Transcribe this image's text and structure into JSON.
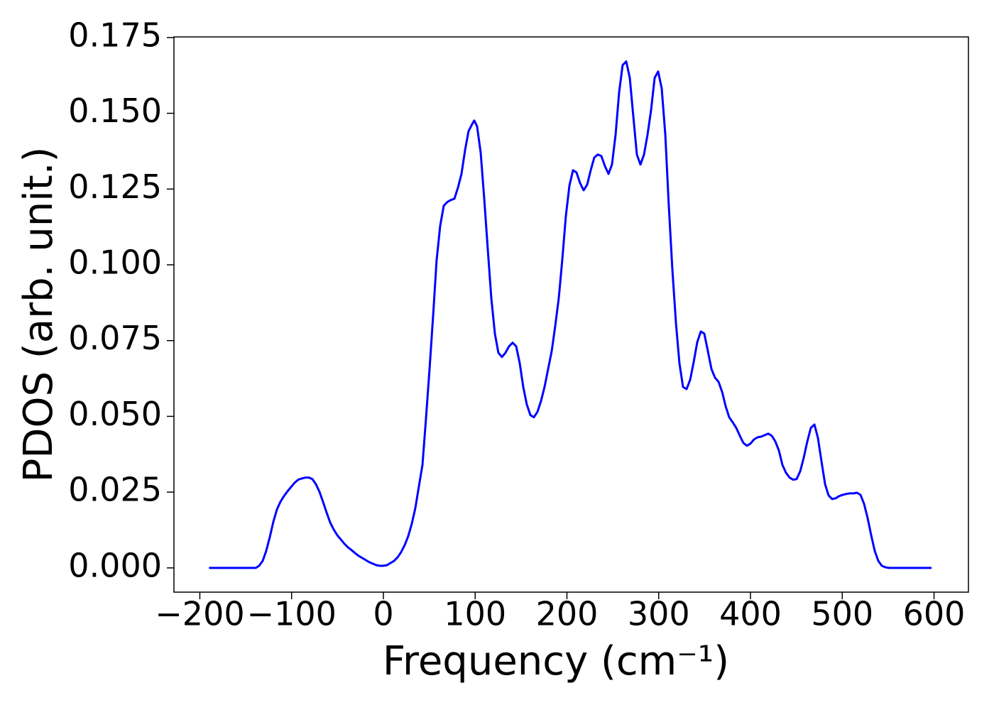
{
  "chart_data": {
    "type": "line",
    "xlabel": "Frequency (cm⁻¹)",
    "ylabel": "PDOS (arb. unit.)",
    "x": [
      -190,
      -139,
      -135.4,
      -131.5,
      -127.7,
      -123.8,
      -119.9,
      -116.1,
      -112.2,
      -108.3,
      -104.4,
      -100.6,
      -96.7,
      -92.8,
      -89,
      -85.1,
      -81.2,
      -77.4,
      -73.5,
      -69.6,
      -65.8,
      -61.9,
      -58,
      -54.2,
      -50.3,
      -46.4,
      -42.6,
      -38.7,
      -34.8,
      -30.9,
      -27.1,
      -23.2,
      -19.3,
      -15.5,
      -11.6,
      -7.7,
      -3.9,
      0,
      3.9,
      7.7,
      11.6,
      15.5,
      19.3,
      23.2,
      27.1,
      30.9,
      34.8,
      38.7,
      42.6,
      46.4,
      50.3,
      54.2,
      58,
      61.9,
      65.8,
      69.6,
      73.5,
      77.4,
      81.2,
      85.1,
      89,
      92.8,
      96.7,
      99,
      102.1,
      106,
      109.9,
      113.7,
      117.6,
      121.5,
      125.3,
      129.2,
      133.1,
      136.9,
      140.8,
      144.7,
      148.6,
      152.4,
      156.3,
      160.2,
      164,
      167.9,
      171.8,
      175.6,
      179.5,
      183.4,
      187.2,
      191.1,
      195,
      198.8,
      202.7,
      206.6,
      210.4,
      214.3,
      218.2,
      222.1,
      225.9,
      229.8,
      233.7,
      237.5,
      241.4,
      245.3,
      249.1,
      253,
      256.9,
      260.7,
      264.6,
      268.5,
      272.4,
      276.2,
      280.1,
      284,
      287.8,
      291.7,
      295.6,
      299.4,
      303.3,
      307.2,
      311,
      314.9,
      318.8,
      322.6,
      326.5,
      330.4,
      334.3,
      338.1,
      342,
      345.9,
      349.7,
      353.6,
      357.5,
      361.3,
      365.2,
      369.1,
      372.9,
      376.8,
      380.7,
      384.5,
      388.4,
      392.3,
      396.2,
      400,
      403.9,
      407.8,
      411.6,
      415.5,
      419.4,
      423.2,
      427.1,
      431,
      434.8,
      438.7,
      442.6,
      446.4,
      450.3,
      454.2,
      458,
      461.9,
      465.8,
      469.7,
      473.5,
      477.4,
      481.3,
      485.1,
      489,
      492.9,
      496.7,
      500.6,
      504.5,
      508.3,
      512.2,
      516.1,
      519.9,
      523.8,
      527.7,
      531.5,
      535.4,
      539.3,
      543.1,
      547,
      550.9,
      597.3
    ],
    "series": [
      {
        "color": "#0000ff",
        "values": [
          0,
          0,
          0.0007,
          0.0023,
          0.0056,
          0.0101,
          0.0152,
          0.0192,
          0.0218,
          0.0237,
          0.0253,
          0.0267,
          0.0281,
          0.0291,
          0.0295,
          0.0298,
          0.0298,
          0.0293,
          0.0276,
          0.0251,
          0.0218,
          0.0183,
          0.015,
          0.0127,
          0.0108,
          0.0094,
          0.008,
          0.0068,
          0.0059,
          0.0049,
          0.004,
          0.0033,
          0.0026,
          0.0019,
          0.0014,
          0.0009,
          0.0007,
          0.0007,
          0.0009,
          0.0016,
          0.0023,
          0.0035,
          0.0052,
          0.0075,
          0.0105,
          0.0145,
          0.0197,
          0.0269,
          0.034,
          0.0492,
          0.0656,
          0.0832,
          0.1015,
          0.1129,
          0.1195,
          0.1207,
          0.1214,
          0.1218,
          0.1254,
          0.13,
          0.1378,
          0.1441,
          0.1464,
          0.1476,
          0.1457,
          0.1371,
          0.1218,
          0.1054,
          0.089,
          0.0773,
          0.071,
          0.0696,
          0.071,
          0.0731,
          0.0743,
          0.0731,
          0.0675,
          0.0597,
          0.0539,
          0.0504,
          0.0497,
          0.0515,
          0.0551,
          0.0597,
          0.0656,
          0.0715,
          0.0797,
          0.089,
          0.1019,
          0.116,
          0.1261,
          0.1312,
          0.1305,
          0.127,
          0.1246,
          0.1265,
          0.1312,
          0.1354,
          0.1364,
          0.1359,
          0.1326,
          0.13,
          0.1331,
          0.1429,
          0.157,
          0.1659,
          0.1671,
          0.1617,
          0.1488,
          0.1364,
          0.1331,
          0.1364,
          0.1429,
          0.1511,
          0.1617,
          0.1638,
          0.1582,
          0.1429,
          0.1195,
          0.0984,
          0.0808,
          0.0675,
          0.0597,
          0.059,
          0.0621,
          0.0679,
          0.0745,
          0.078,
          0.0773,
          0.0715,
          0.0656,
          0.0628,
          0.0614,
          0.0581,
          0.0534,
          0.0497,
          0.048,
          0.0462,
          0.0436,
          0.0412,
          0.0403,
          0.041,
          0.0424,
          0.0431,
          0.0433,
          0.0438,
          0.0443,
          0.0436,
          0.0417,
          0.0387,
          0.034,
          0.0314,
          0.0298,
          0.0291,
          0.0293,
          0.0319,
          0.0363,
          0.0417,
          0.0462,
          0.0473,
          0.0429,
          0.0351,
          0.0276,
          0.0239,
          0.0227,
          0.023,
          0.0237,
          0.0241,
          0.0244,
          0.0246,
          0.0246,
          0.0248,
          0.0241,
          0.0211,
          0.0164,
          0.0108,
          0.0056,
          0.0023,
          0.0007,
          0.0002,
          0,
          0
        ]
      }
    ],
    "xlim": [
      -228.2,
      637.5
    ],
    "ylim": [
      -0.008,
      0.1752
    ],
    "xticks": [
      {
        "value": -200,
        "label": "−200"
      },
      {
        "value": -100,
        "label": "−100"
      },
      0,
      100,
      200,
      300,
      400,
      500,
      600
    ],
    "yticks": [
      {
        "value": 0,
        "label": "0.000"
      },
      {
        "value": 0.025,
        "label": "0.025"
      },
      {
        "value": 0.05,
        "label": "0.050"
      },
      {
        "value": 0.075,
        "label": "0.075"
      },
      {
        "value": 0.1,
        "label": "0.100"
      },
      {
        "value": 0.125,
        "label": "0.125"
      },
      {
        "value": 0.15,
        "label": "0.150"
      },
      {
        "value": 0.175,
        "label": "0.175"
      }
    ],
    "grid": false
  }
}
